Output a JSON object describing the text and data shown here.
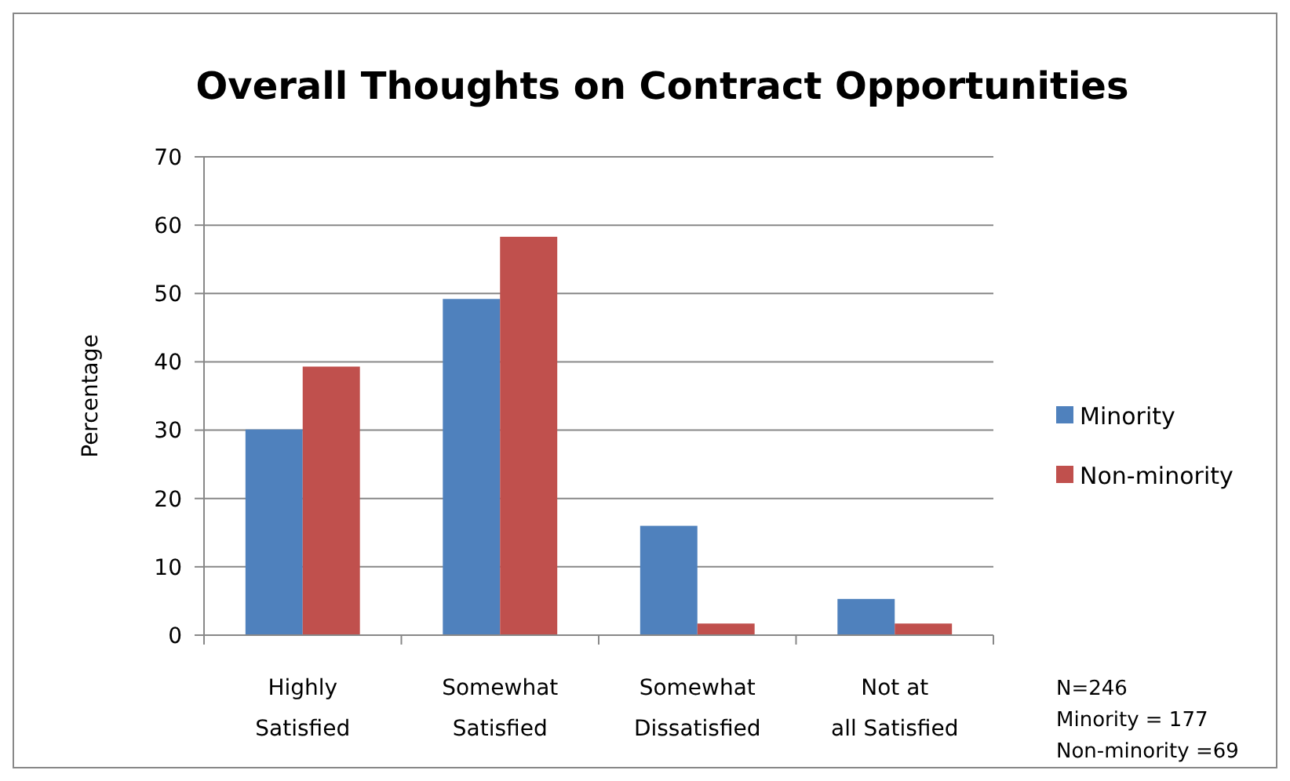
{
  "chart_data": {
    "type": "bar",
    "title": "Overall Thoughts on Contract Opportunities",
    "ylabel": "Percentage",
    "categories": [
      "Highly Satisfied",
      "Somewhat Satisfied",
      "Somewhat Dissatisfied",
      "Not at all Satisfied"
    ],
    "series": [
      {
        "name": "Minority",
        "color": "#4f81bd",
        "values": [
          30.1,
          49.2,
          16.0,
          5.3
        ]
      },
      {
        "name": "Non-minority",
        "color": "#c0504d",
        "values": [
          39.3,
          58.3,
          1.7,
          1.7
        ]
      }
    ],
    "ylim": [
      0,
      70
    ],
    "yticks": [
      0,
      10,
      20,
      30,
      40,
      50,
      60,
      70
    ],
    "grid": "y",
    "legend": "right",
    "annotations": [
      "N=246",
      "Minority = 177",
      "Non-minority =69"
    ]
  }
}
